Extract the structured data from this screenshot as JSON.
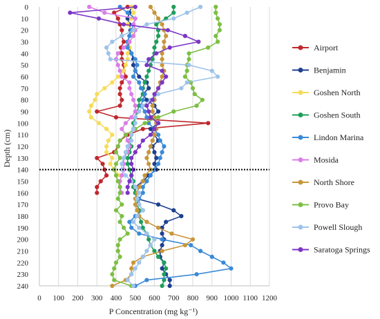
{
  "chart_data": {
    "type": "line",
    "orientation": "depth-profile",
    "xlabel": "P Concentration (mg kg⁻¹)",
    "ylabel": "Depth (cm)",
    "xlim": [
      0,
      1200
    ],
    "ylim": [
      0,
      240
    ],
    "y_inverted": true,
    "x_ticks": [
      0,
      100,
      200,
      300,
      400,
      500,
      600,
      700,
      800,
      900,
      1000,
      1100,
      1200
    ],
    "y_ticks": [
      0,
      10,
      20,
      30,
      40,
      50,
      60,
      70,
      80,
      90,
      100,
      110,
      120,
      130,
      140,
      150,
      160,
      170,
      180,
      190,
      200,
      210,
      220,
      230,
      240
    ],
    "grid": "vertical",
    "legend_position": "right",
    "reference_line": {
      "depth": 140,
      "style": "dotted",
      "color": "#000000"
    },
    "series": [
      {
        "name": "Airport",
        "color": "#c0282d",
        "depth": [
          0,
          5,
          10,
          15,
          20,
          25,
          30,
          35,
          40,
          45,
          50,
          55,
          60,
          65,
          70,
          75,
          80,
          85,
          90,
          95,
          100,
          105,
          110,
          115,
          120,
          125,
          130,
          135,
          140,
          145,
          150,
          155,
          160
        ],
        "values": [
          460,
          390,
          410,
          420,
          430,
          430,
          440,
          425,
          430,
          430,
          440,
          440,
          450,
          430,
          420,
          420,
          430,
          420,
          300,
          400,
          880,
          540,
          460,
          420,
          410,
          390,
          300,
          330,
          340,
          350,
          320,
          300,
          300
        ]
      },
      {
        "name": "Benjamin",
        "color": "#1f3f8f",
        "depth": [
          0,
          5,
          10,
          15,
          20,
          25,
          30,
          35,
          40,
          45,
          50,
          55,
          60,
          65,
          70,
          75,
          80,
          85,
          90,
          95,
          100,
          105,
          110,
          115,
          120,
          125,
          130,
          135,
          140,
          145,
          150,
          155,
          160,
          165,
          170,
          175,
          180,
          185,
          190,
          195,
          200,
          205,
          210,
          215,
          220,
          225,
          230,
          235,
          240
        ],
        "values": [
          480,
          470,
          460,
          470,
          475,
          470,
          460,
          470,
          480,
          490,
          490,
          500,
          520,
          560,
          570,
          540,
          560,
          600,
          620,
          580,
          620,
          580,
          600,
          620,
          590,
          600,
          610,
          600,
          610,
          570,
          540,
          500,
          500,
          510,
          620,
          700,
          740,
          660,
          640,
          640,
          650,
          640,
          630,
          630,
          650,
          640,
          660,
          680,
          680
        ]
      },
      {
        "name": "Goshen North",
        "color": "#f7dc5a",
        "depth": [
          0,
          5,
          10,
          15,
          20,
          25,
          30,
          35,
          40,
          45,
          50,
          55,
          60,
          65,
          70,
          75,
          80,
          85,
          90,
          95,
          100,
          105,
          110,
          115,
          120,
          125,
          130,
          135,
          140,
          145
        ],
        "values": [
          480,
          490,
          480,
          460,
          480,
          490,
          470,
          470,
          460,
          460,
          450,
          440,
          410,
          380,
          340,
          300,
          290,
          270,
          260,
          270,
          310,
          350,
          380,
          360,
          350,
          350,
          380,
          370,
          390,
          420
        ]
      },
      {
        "name": "Goshen South",
        "color": "#1e9e5a",
        "depth": [
          0,
          5,
          10,
          15,
          20,
          25,
          30,
          35,
          40,
          45,
          50,
          55,
          60,
          65,
          70,
          75,
          80,
          85,
          90,
          95,
          100,
          105,
          110,
          115,
          120,
          125,
          130,
          135,
          140,
          145,
          150,
          155,
          160,
          165,
          170,
          175,
          180,
          185,
          190,
          195,
          200,
          205,
          210,
          215,
          220,
          225,
          230,
          235,
          240
        ],
        "values": [
          700,
          700,
          660,
          610,
          620,
          620,
          610,
          600,
          600,
          590,
          580,
          570,
          560,
          550,
          540,
          540,
          520,
          520,
          510,
          500,
          490,
          490,
          480,
          470,
          480,
          470,
          460,
          460,
          470,
          480,
          490,
          490,
          500,
          510,
          510,
          520,
          520,
          530,
          540,
          560,
          570,
          580,
          600,
          620,
          650,
          660,
          650,
          650,
          640
        ]
      },
      {
        "name": "Lindon Marina",
        "color": "#3a8ad8",
        "depth": [
          0,
          5,
          10,
          15,
          20,
          25,
          30,
          35,
          40,
          45,
          50,
          55,
          60,
          65,
          70,
          75,
          80,
          85,
          90,
          95,
          100,
          105,
          110,
          115,
          120,
          125,
          130,
          135,
          140,
          145,
          150,
          155,
          160,
          165,
          170,
          175,
          180,
          185,
          190,
          195,
          200,
          205,
          210,
          215,
          220,
          225,
          230,
          235,
          240
        ],
        "values": [
          420,
          460,
          500,
          490,
          480,
          470,
          460,
          460,
          480,
          500,
          510,
          500,
          490,
          520,
          530,
          550,
          540,
          530,
          550,
          560,
          570,
          600,
          620,
          630,
          650,
          640,
          630,
          620,
          600,
          580,
          560,
          540,
          540,
          520,
          520,
          540,
          500,
          470,
          480,
          520,
          640,
          790,
          840,
          900,
          960,
          1000,
          820,
          560,
          500
        ]
      },
      {
        "name": "Mosida",
        "color": "#d97ee6",
        "depth": [
          0,
          5,
          10,
          15,
          20,
          25,
          30,
          35,
          40,
          45,
          50,
          55,
          60,
          65,
          70,
          75,
          80,
          85,
          90,
          95,
          100,
          105,
          110,
          115,
          120,
          125,
          130,
          135,
          140,
          145,
          150,
          155,
          160
        ],
        "values": [
          260,
          340,
          500,
          490,
          500,
          490,
          470,
          440,
          410,
          400,
          410,
          420,
          430,
          470,
          470,
          480,
          490,
          500,
          500,
          480,
          450,
          430,
          450,
          460,
          470,
          460,
          440,
          440,
          440,
          430,
          420,
          420,
          430
        ]
      },
      {
        "name": "North Shore",
        "color": "#c8963a",
        "depth": [
          0,
          5,
          10,
          15,
          20,
          25,
          30,
          35,
          40,
          45,
          50,
          55,
          60,
          65,
          70,
          75,
          80,
          85,
          90,
          95,
          100,
          105,
          110,
          115,
          120,
          125,
          130,
          135,
          140,
          145,
          150,
          155,
          160,
          165,
          170,
          175,
          180,
          185,
          190,
          195,
          200,
          205,
          210,
          215,
          220,
          225,
          230,
          235,
          240
        ],
        "values": [
          580,
          600,
          620,
          640,
          650,
          660,
          650,
          650,
          640,
          640,
          640,
          650,
          640,
          630,
          620,
          610,
          600,
          590,
          590,
          600,
          610,
          610,
          600,
          590,
          580,
          570,
          560,
          570,
          580,
          550,
          540,
          520,
          510,
          500,
          500,
          510,
          520,
          560,
          620,
          690,
          800,
          760,
          640,
          540,
          490,
          480,
          480,
          450,
          380
        ]
      },
      {
        "name": "Provo Bay",
        "color": "#7dbf44",
        "depth": [
          0,
          5,
          10,
          15,
          20,
          25,
          30,
          35,
          40,
          45,
          50,
          55,
          60,
          65,
          70,
          75,
          80,
          85,
          90,
          95,
          100,
          105,
          110,
          115,
          120,
          125,
          130,
          135,
          140,
          145,
          150,
          155,
          160,
          165,
          170,
          175,
          180,
          185,
          190,
          195,
          200,
          205,
          210,
          215,
          220,
          225,
          230,
          235,
          240
        ],
        "values": [
          920,
          920,
          930,
          940,
          940,
          920,
          930,
          880,
          780,
          780,
          770,
          770,
          760,
          790,
          800,
          810,
          850,
          820,
          700,
          620,
          550,
          500,
          450,
          420,
          410,
          400,
          420,
          400,
          390,
          400,
          410,
          420,
          420,
          410,
          430,
          400,
          430,
          420,
          440,
          460,
          420,
          410,
          410,
          420,
          400,
          390,
          380,
          390,
          480
        ]
      },
      {
        "name": "Powell Slough",
        "color": "#9ec3ea",
        "depth": [
          0,
          5,
          10,
          15,
          20,
          25,
          30,
          35,
          40,
          45,
          50,
          55,
          60,
          65,
          70,
          75,
          80,
          85,
          90,
          95,
          100,
          105,
          110,
          115,
          120,
          125,
          130,
          135,
          140,
          145,
          150,
          155,
          160,
          165,
          170,
          175,
          180,
          185,
          190,
          195,
          200,
          205,
          210,
          215,
          220,
          225,
          230,
          235,
          240
        ],
        "values": [
          840,
          770,
          700,
          560,
          490,
          430,
          380,
          350,
          360,
          370,
          780,
          900,
          930,
          770,
          740,
          620,
          580,
          540,
          520,
          500,
          500,
          490,
          480,
          480,
          460,
          450,
          440,
          430,
          430,
          450,
          480,
          500,
          520,
          510,
          520,
          540,
          510,
          490,
          520,
          560,
          600,
          580,
          560,
          540,
          520,
          500,
          480,
          460,
          490
        ]
      },
      {
        "name": "Saratoga Springs",
        "color": "#7b35c6",
        "depth": [
          0,
          5,
          10,
          15,
          20,
          25,
          30,
          35,
          40,
          45,
          50,
          55,
          60,
          65,
          70,
          75,
          80,
          85,
          90,
          95,
          100,
          105,
          110,
          115,
          120,
          125,
          130,
          135,
          140,
          145,
          150,
          155,
          160
        ],
        "values": [
          500,
          160,
          310,
          440,
          670,
          760,
          830,
          680,
          610,
          570,
          560,
          640,
          660,
          640,
          620,
          600,
          590,
          560,
          570,
          580,
          620,
          600,
          580,
          540,
          520,
          500,
          480,
          480,
          490,
          480,
          470,
          460,
          460
        ]
      }
    ]
  }
}
